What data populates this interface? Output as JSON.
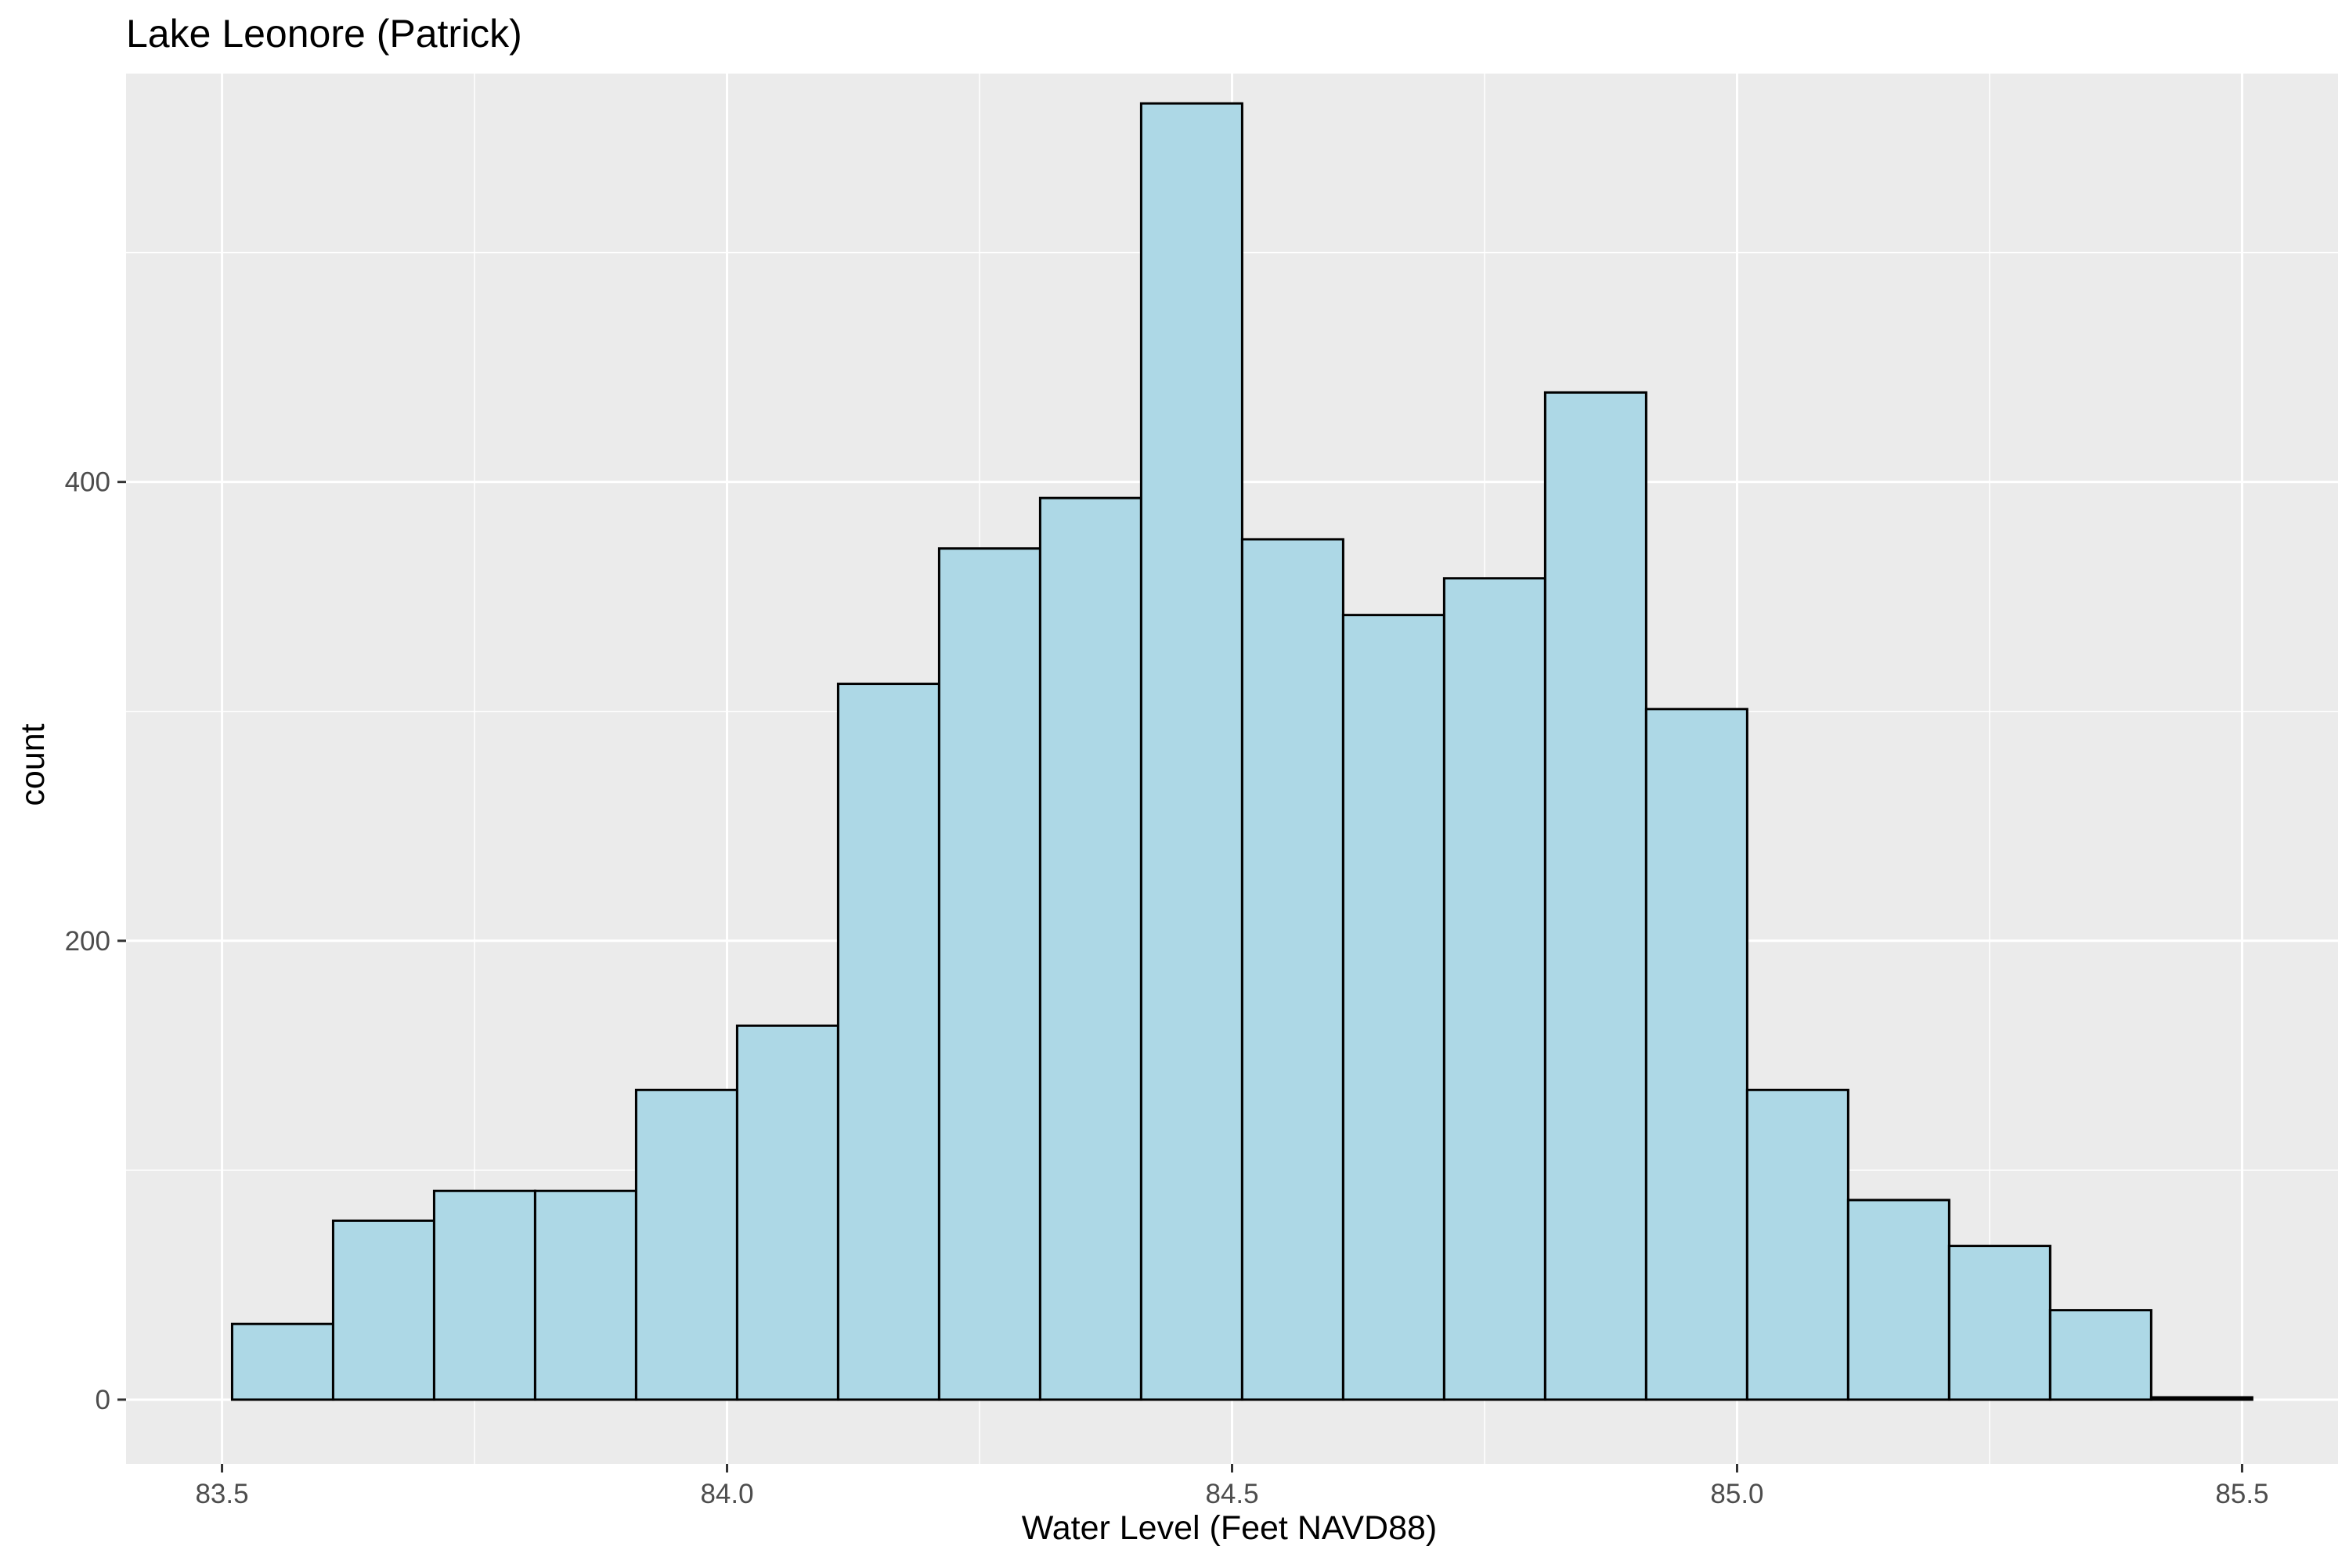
{
  "chart_data": {
    "type": "bar",
    "title": "Lake Leonore (Patrick)",
    "xlabel": "Water Level (Feet NAVD88)",
    "ylabel": "count",
    "xlim": [
      83.405,
      85.595
    ],
    "ylim": [
      -28,
      578
    ],
    "x_ticks": [
      {
        "value": 83.5,
        "label": "83.5"
      },
      {
        "value": 84.0,
        "label": "84.0"
      },
      {
        "value": 84.5,
        "label": "84.5"
      },
      {
        "value": 85.0,
        "label": "85.0"
      },
      {
        "value": 85.5,
        "label": "85.5"
      }
    ],
    "y_ticks": [
      {
        "value": 0,
        "label": "0"
      },
      {
        "value": 200,
        "label": "200"
      },
      {
        "value": 400,
        "label": "400"
      }
    ],
    "bins": [
      {
        "x0": 83.51,
        "x1": 83.61,
        "count": 33
      },
      {
        "x0": 83.61,
        "x1": 83.71,
        "count": 78
      },
      {
        "x0": 83.71,
        "x1": 83.81,
        "count": 91
      },
      {
        "x0": 83.81,
        "x1": 83.91,
        "count": 91
      },
      {
        "x0": 83.91,
        "x1": 84.01,
        "count": 135
      },
      {
        "x0": 84.01,
        "x1": 84.11,
        "count": 163
      },
      {
        "x0": 84.11,
        "x1": 84.21,
        "count": 312
      },
      {
        "x0": 84.21,
        "x1": 84.31,
        "count": 371
      },
      {
        "x0": 84.31,
        "x1": 84.41,
        "count": 393
      },
      {
        "x0": 84.41,
        "x1": 84.51,
        "count": 565
      },
      {
        "x0": 84.51,
        "x1": 84.61,
        "count": 375
      },
      {
        "x0": 84.61,
        "x1": 84.71,
        "count": 342
      },
      {
        "x0": 84.71,
        "x1": 84.81,
        "count": 358
      },
      {
        "x0": 84.81,
        "x1": 84.91,
        "count": 439
      },
      {
        "x0": 84.91,
        "x1": 85.01,
        "count": 301
      },
      {
        "x0": 85.01,
        "x1": 85.11,
        "count": 135
      },
      {
        "x0": 85.11,
        "x1": 85.21,
        "count": 87
      },
      {
        "x0": 85.21,
        "x1": 85.31,
        "count": 67
      },
      {
        "x0": 85.31,
        "x1": 85.41,
        "count": 39
      },
      {
        "x0": 85.41,
        "x1": 85.51,
        "count": 1
      }
    ],
    "bar_fill": "#ADD8E6",
    "bar_stroke": "#000000",
    "panel_background": "#EBEBEB",
    "grid": true,
    "grid_color": "#FFFFFF"
  }
}
